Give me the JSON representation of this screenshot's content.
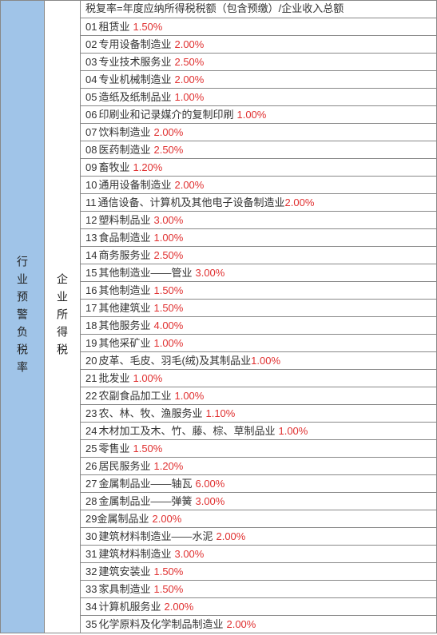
{
  "leftHeader": "行业预警负税率",
  "midHeader": "企业所得税",
  "formula": "税复率=年度应纳所得税税额（包含预缴）/企业收入总额",
  "rate_color": "#e03030",
  "text_color": "#333333",
  "left_bg": "#a0c4e8",
  "border_color": "#888888",
  "font_size": 13,
  "rows": [
    {
      "idx": "01",
      "name": "租赁业",
      "rate": "1.50%"
    },
    {
      "idx": "02",
      "name": "专用设备制造业",
      "rate": "2.00%"
    },
    {
      "idx": "03",
      "name": "专业技术服务业",
      "rate": "2.50%"
    },
    {
      "idx": "04",
      "name": "专业机械制造业",
      "rate": "2.00%"
    },
    {
      "idx": "05",
      "name": "造纸及纸制品业",
      "rate": "1.00%"
    },
    {
      "idx": "06",
      "name": "印刷业和记录媒介的复制印刷",
      "rate": "1.00%"
    },
    {
      "idx": "07",
      "name": "饮料制造业",
      "rate": "2.00%"
    },
    {
      "idx": "08",
      "name": "医药制造业",
      "rate": "2.50%"
    },
    {
      "idx": "09",
      "name": "畜牧业",
      "rate": "1.20%"
    },
    {
      "idx": "10",
      "name": "通用设备制造业",
      "rate": "2.00%"
    },
    {
      "idx": "11",
      "name": "通信设备、计算机及其他电子设备制造业",
      "rate": "2.00%",
      "nospace": true
    },
    {
      "idx": "12",
      "name": "塑料制品业",
      "rate": "3.00%"
    },
    {
      "idx": "13",
      "name": "食品制造业",
      "rate": "1.00%"
    },
    {
      "idx": "14",
      "name": "商务服务业",
      "rate": "2.50%"
    },
    {
      "idx": "15",
      "name": "其他制造业——管业",
      "rate": "3.00%"
    },
    {
      "idx": "16",
      "name": "其他制造业",
      "rate": "1.50%"
    },
    {
      "idx": "17",
      "name": "其他建筑业",
      "rate": "1.50%"
    },
    {
      "idx": "18",
      "name": "其他服务业",
      "rate": "4.00%"
    },
    {
      "idx": "19",
      "name": "其他采矿业",
      "rate": "1.00%"
    },
    {
      "idx": "20",
      "name": "皮革、毛皮、羽毛(绒)及其制品业",
      "rate": "1.00%",
      "nospace": true
    },
    {
      "idx": "21",
      "name": "批发业",
      "rate": "1.00%"
    },
    {
      "idx": "22",
      "name": "农副食品加工业",
      "rate": "1.00%"
    },
    {
      "idx": "23",
      "name": "农、林、牧、渔服务业",
      "rate": "1.10%"
    },
    {
      "idx": "24",
      "name": "木材加工及木、竹、藤、棕、草制品业",
      "rate": "1.00%"
    },
    {
      "idx": "25",
      "name": "零售业",
      "rate": "1.50%"
    },
    {
      "idx": "26",
      "name": "居民服务业",
      "rate": "1.20%"
    },
    {
      "idx": "27",
      "name": "金属制品业——轴瓦",
      "rate": "6.00%"
    },
    {
      "idx": "28",
      "name": "金属制品业——弹簧",
      "rate": "3.00%"
    },
    {
      "idx": "29",
      "name": "金属制品业",
      "rate": "2.00%",
      "nospacename": true
    },
    {
      "idx": "30",
      "name": "建筑材料制造业——水泥",
      "rate": "2.00%"
    },
    {
      "idx": "31",
      "name": "建筑材料制造业",
      "rate": "3.00%"
    },
    {
      "idx": "32",
      "name": "建筑安装业",
      "rate": "1.50%"
    },
    {
      "idx": "33",
      "name": "家具制造业",
      "rate": "1.50%"
    },
    {
      "idx": "34",
      "name": "计算机服务业",
      "rate": "2.00%"
    },
    {
      "idx": "35",
      "name": "化学原料及化学制品制造业",
      "rate": "2.00%"
    }
  ]
}
